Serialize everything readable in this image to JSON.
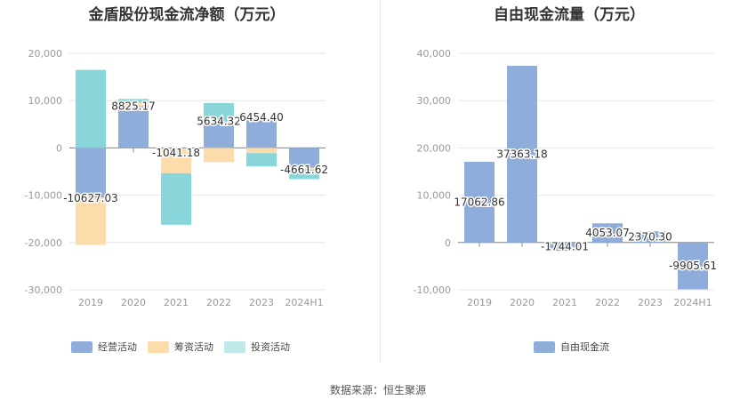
{
  "footer": "数据来源：恒生聚源",
  "colors": {
    "operating": "#8eaddb",
    "financing": "#fcdcab",
    "investing": "#88d6da",
    "grid": "#e6e6e6",
    "axis": "#999999"
  },
  "chart_data": [
    {
      "type": "bar",
      "title": "金盾股份现金流净额（万元）",
      "stacked": true,
      "categories": [
        "2019",
        "2020",
        "2021",
        "2022",
        "2023",
        "2024H1"
      ],
      "ylim": [
        -30000,
        20000
      ],
      "yticks": [
        "20,000",
        "10,000",
        "0",
        "-10,000",
        "-20,000",
        "-30,000"
      ],
      "ytick_values": [
        20000,
        10000,
        0,
        -10000,
        -20000,
        -30000
      ],
      "series": [
        {
          "name": "经营活动",
          "color": "#8eaddb",
          "values": [
            -10500,
            8800,
            -150,
            5600,
            6300,
            -4200
          ]
        },
        {
          "name": "筹资活动",
          "color": "#fcdcab",
          "values": [
            -10000,
            700,
            -5200,
            -3000,
            -1100,
            -400
          ]
        },
        {
          "name": "投资活动",
          "color": "#88d6da",
          "values": [
            16500,
            850,
            -10900,
            3900,
            -2800,
            -2000
          ]
        }
      ],
      "net_labels": [
        "-10627.03",
        "8825.17",
        "-1041.18",
        "5634.32",
        "6454.40",
        "-4661.62"
      ],
      "net_values": [
        -10627.03,
        8825.17,
        -1041.18,
        5634.32,
        6454.4,
        -4661.62
      ],
      "legend_position": "bottom",
      "grid": true
    },
    {
      "type": "bar",
      "title": "自由现金流量（万元）",
      "categories": [
        "2019",
        "2020",
        "2021",
        "2022",
        "2023",
        "2024H1"
      ],
      "ylim": [
        -10000,
        40000
      ],
      "yticks": [
        "40,000",
        "30,000",
        "20,000",
        "10,000",
        "0",
        "-10,000"
      ],
      "ytick_values": [
        40000,
        30000,
        20000,
        10000,
        0,
        -10000
      ],
      "series": [
        {
          "name": "自由现金流",
          "color": "#8eaddb",
          "values": [
            17062.86,
            37363.18,
            -1744.01,
            4053.07,
            2370.3,
            -9905.61
          ]
        }
      ],
      "value_labels": [
        "17062.86",
        "37363.18",
        "-1744.01",
        "4053.07",
        "2370.30",
        "-9905.61"
      ],
      "legend_position": "bottom",
      "grid": true
    }
  ]
}
